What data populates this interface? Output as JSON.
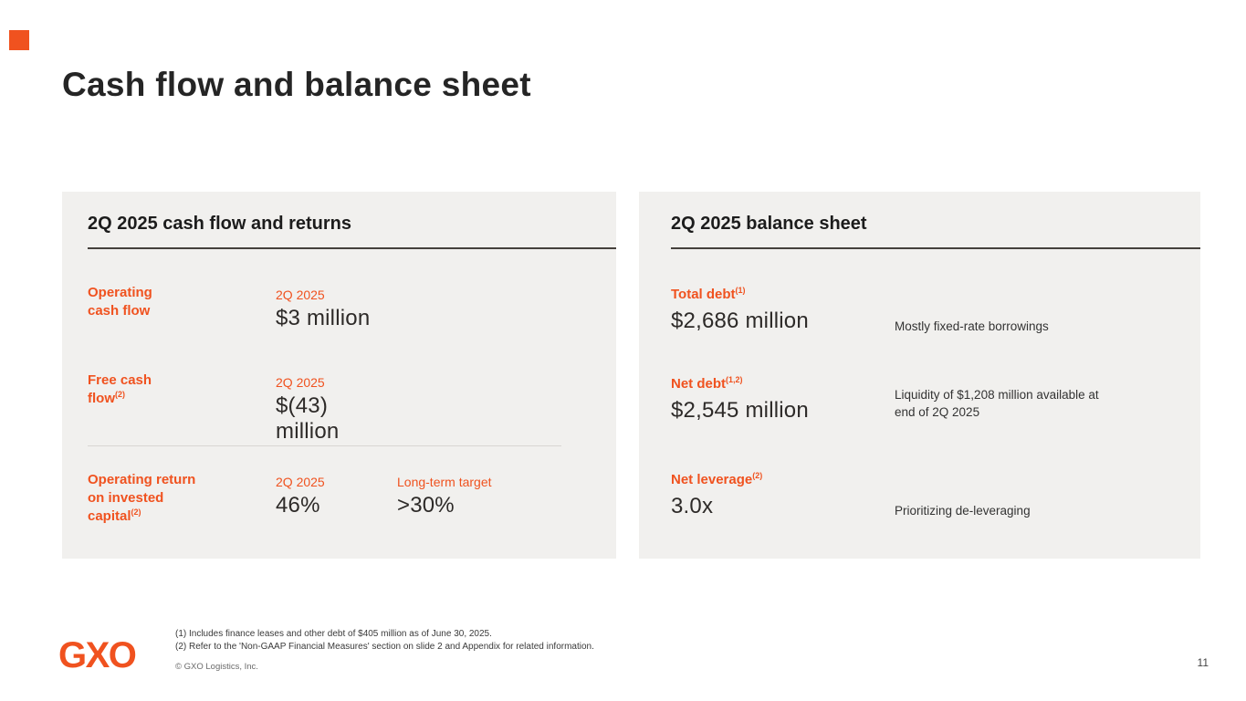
{
  "colors": {
    "accent": "#F0521F",
    "panel_bg": "#F1F0EE",
    "text_dark": "#2b2b2b"
  },
  "slide": {
    "title": "Cash flow and balance sheet",
    "logo": "GXO",
    "page_number": "11"
  },
  "cash_flow_panel": {
    "header": "2Q 2025 cash flow and returns",
    "rows": [
      {
        "label": "Operating\ncash flow",
        "sup": "",
        "period_label": "2Q 2025",
        "value": "$3 million"
      },
      {
        "label": "Free cash\nflow",
        "sup": "(2)",
        "period_label": "2Q 2025",
        "value": "$(43) million"
      },
      {
        "label": "Operating return\non invested\ncapital",
        "sup": "(2)",
        "period_label": "2Q 2025",
        "value": "46%",
        "target_label": "Long-term target",
        "target_value": ">30%"
      }
    ]
  },
  "balance_sheet_panel": {
    "header": "2Q 2025 balance sheet",
    "rows": [
      {
        "label": "Total debt",
        "sup": "(1)",
        "value": "$2,686 million",
        "note": "Mostly fixed-rate borrowings"
      },
      {
        "label": "Net debt",
        "sup": "(1,2)",
        "value": "$2,545 million",
        "note": "Liquidity of $1,208 million available at end of 2Q 2025"
      },
      {
        "label": "Net leverage",
        "sup": "(2)",
        "value": "3.0x",
        "note": "Prioritizing de-leveraging"
      }
    ]
  },
  "footer": {
    "footnote1": "(1) Includes finance leases and other debt of $405 million as of June 30, 2025.",
    "footnote2": "(2) Refer to the 'Non-GAAP Financial Measures' section on slide 2 and Appendix for related information.",
    "copyright": "© GXO Logistics, Inc."
  }
}
